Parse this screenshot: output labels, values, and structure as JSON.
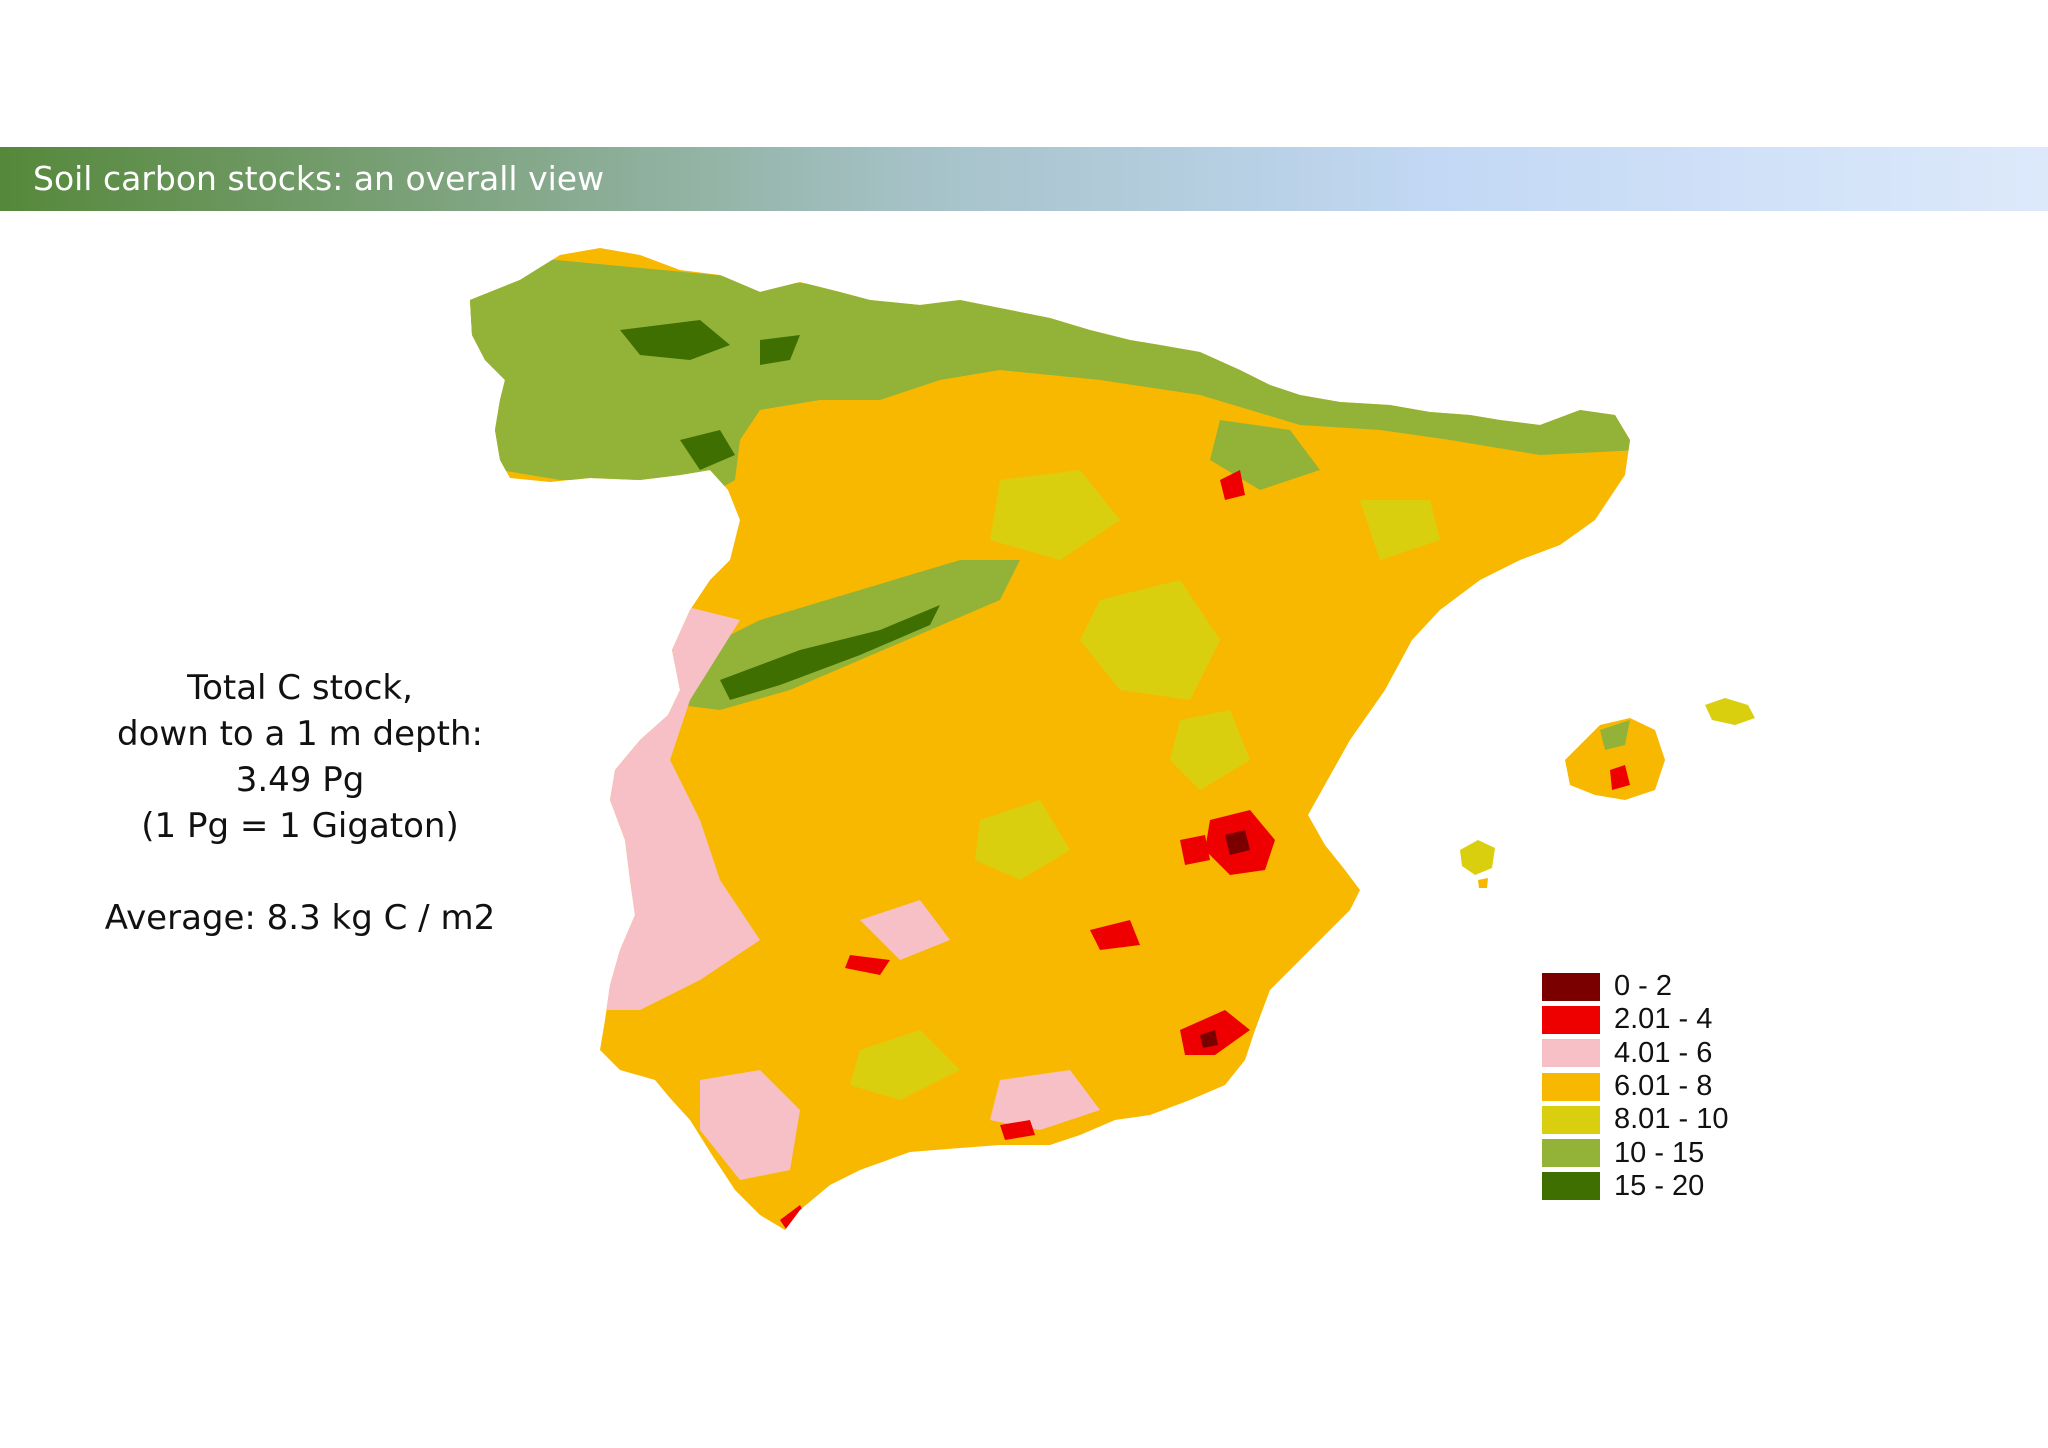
{
  "slide": {
    "title": "Soil carbon stocks: an overall view"
  },
  "stats": {
    "line1": "Total C stock,",
    "line2": "down to a 1 m depth:",
    "line3": "3.49 Pg",
    "line4": "(1 Pg = 1 Gigaton)",
    "average": "Average: 8.3 kg C / m2"
  },
  "legend": [
    {
      "label": "0 - 2",
      "color": "#7a0000"
    },
    {
      "label": "2.01 - 4",
      "color": "#ee0000"
    },
    {
      "label": "4.01 - 6",
      "color": "#f6c0c6"
    },
    {
      "label": "6.01 - 8",
      "color": "#f9b800"
    },
    {
      "label": "8.01 - 10",
      "color": "#d9cf0e"
    },
    {
      "label": "10 - 15",
      "color": "#93b338"
    },
    {
      "label": "15 - 20",
      "color": "#3f6f00"
    }
  ]
}
